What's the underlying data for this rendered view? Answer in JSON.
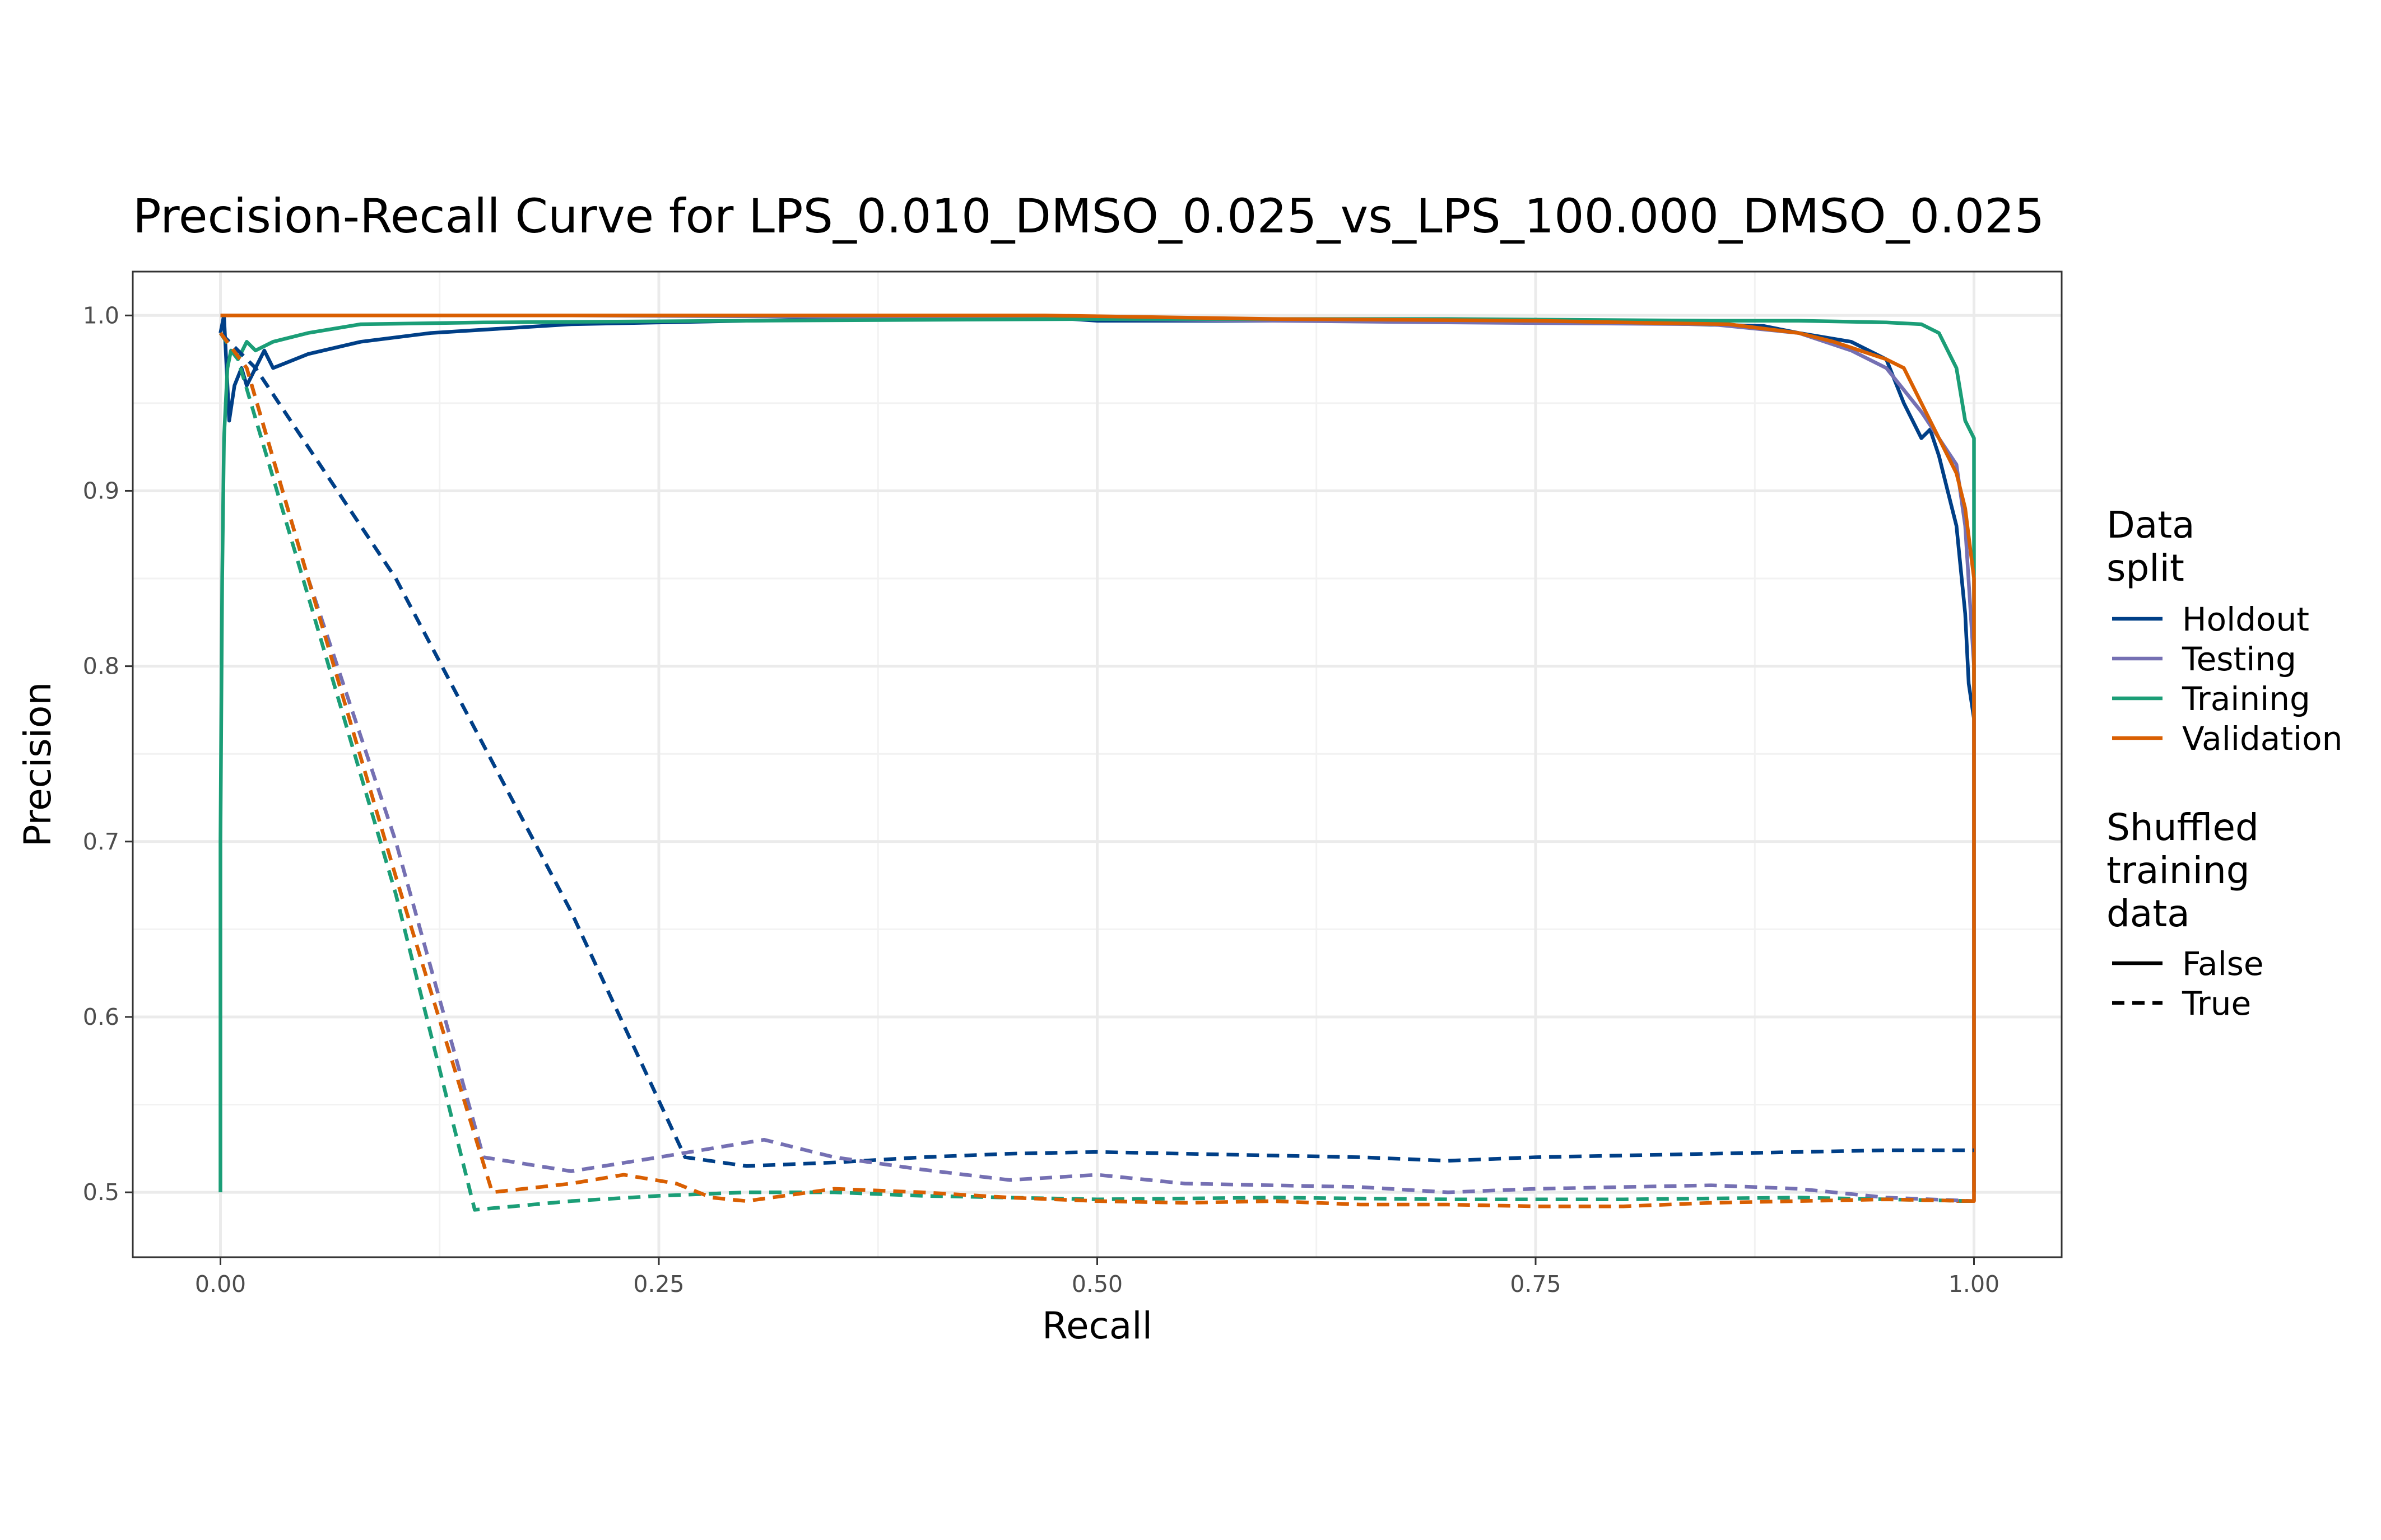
{
  "chart_data": {
    "type": "line",
    "title": "Precision-Recall Curve for LPS_0.010_DMSO_0.025_vs_LPS_100.000_DMSO_0.025",
    "xlabel": "Recall",
    "ylabel": "Precision",
    "xlim": [
      -0.05,
      1.05
    ],
    "ylim": [
      0.463,
      1.025
    ],
    "xticks": [
      0.0,
      0.25,
      0.5,
      0.75,
      1.0
    ],
    "xtick_labels": [
      "0.00",
      "0.25",
      "0.50",
      "0.75",
      "1.00"
    ],
    "yticks": [
      0.5,
      0.6,
      0.7,
      0.8,
      0.9,
      1.0
    ],
    "ytick_labels": [
      "0.5",
      "0.6",
      "0.7",
      "0.8",
      "0.9",
      "1.0"
    ],
    "grid": true,
    "legend_placement": "right",
    "legend": {
      "color_title_lines": [
        "Data",
        "split"
      ],
      "color_entries": [
        {
          "label": "Holdout",
          "color": "#003f87"
        },
        {
          "label": "Testing",
          "color": "#7570b3"
        },
        {
          "label": "Training",
          "color": "#1b9e77"
        },
        {
          "label": "Validation",
          "color": "#d95f02"
        }
      ],
      "linetype_title_lines": [
        "Shuffled",
        "training",
        "data"
      ],
      "linetype_entries": [
        {
          "label": "False",
          "dash": "solid"
        },
        {
          "label": "True",
          "dash": "dashed"
        }
      ]
    },
    "series": [
      {
        "split": "Holdout",
        "shuffled": "False",
        "color": "#003f87",
        "dash": "solid",
        "points": [
          [
            0.0,
            0.99
          ],
          [
            0.002,
            1.0
          ],
          [
            0.005,
            0.94
          ],
          [
            0.008,
            0.96
          ],
          [
            0.012,
            0.97
          ],
          [
            0.015,
            0.96
          ],
          [
            0.02,
            0.97
          ],
          [
            0.025,
            0.98
          ],
          [
            0.03,
            0.97
          ],
          [
            0.05,
            0.978
          ],
          [
            0.08,
            0.985
          ],
          [
            0.12,
            0.99
          ],
          [
            0.2,
            0.995
          ],
          [
            0.3,
            0.997
          ],
          [
            0.47,
            0.999
          ],
          [
            0.5,
            0.997
          ],
          [
            0.7,
            0.997
          ],
          [
            0.8,
            0.996
          ],
          [
            0.88,
            0.994
          ],
          [
            0.9,
            0.99
          ],
          [
            0.93,
            0.985
          ],
          [
            0.95,
            0.975
          ],
          [
            0.96,
            0.95
          ],
          [
            0.97,
            0.93
          ],
          [
            0.975,
            0.935
          ],
          [
            0.98,
            0.92
          ],
          [
            0.985,
            0.9
          ],
          [
            0.99,
            0.88
          ],
          [
            0.995,
            0.83
          ],
          [
            0.997,
            0.79
          ],
          [
            1.0,
            0.77
          ],
          [
            1.0,
            0.5
          ]
        ]
      },
      {
        "split": "Testing",
        "shuffled": "False",
        "color": "#7570b3",
        "dash": "solid",
        "points": [
          [
            0.0,
            1.0
          ],
          [
            0.2,
            1.0
          ],
          [
            0.4,
            0.999
          ],
          [
            0.6,
            0.997
          ],
          [
            0.7,
            0.996
          ],
          [
            0.85,
            0.995
          ],
          [
            0.9,
            0.99
          ],
          [
            0.93,
            0.98
          ],
          [
            0.95,
            0.97
          ],
          [
            0.97,
            0.945
          ],
          [
            0.98,
            0.93
          ],
          [
            0.99,
            0.915
          ],
          [
            0.995,
            0.88
          ],
          [
            1.0,
            0.8
          ],
          [
            1.0,
            0.495
          ]
        ]
      },
      {
        "split": "Training",
        "shuffled": "False",
        "color": "#1b9e77",
        "dash": "solid",
        "points": [
          [
            0.0,
            0.5
          ],
          [
            0.0,
            0.7
          ],
          [
            0.001,
            0.85
          ],
          [
            0.002,
            0.93
          ],
          [
            0.004,
            0.97
          ],
          [
            0.006,
            0.98
          ],
          [
            0.01,
            0.975
          ],
          [
            0.015,
            0.985
          ],
          [
            0.02,
            0.98
          ],
          [
            0.03,
            0.985
          ],
          [
            0.05,
            0.99
          ],
          [
            0.08,
            0.995
          ],
          [
            0.15,
            0.996
          ],
          [
            0.3,
            0.997
          ],
          [
            0.5,
            0.998
          ],
          [
            0.7,
            0.998
          ],
          [
            0.85,
            0.997
          ],
          [
            0.9,
            0.997
          ],
          [
            0.95,
            0.996
          ],
          [
            0.97,
            0.995
          ],
          [
            0.98,
            0.99
          ],
          [
            0.99,
            0.97
          ],
          [
            0.995,
            0.94
          ],
          [
            1.0,
            0.93
          ],
          [
            1.0,
            0.77
          ]
        ]
      },
      {
        "split": "Validation",
        "shuffled": "False",
        "color": "#d95f02",
        "dash": "solid",
        "points": [
          [
            0.0,
            1.0
          ],
          [
            0.47,
            1.0
          ],
          [
            0.6,
            0.998
          ],
          [
            0.75,
            0.997
          ],
          [
            0.8,
            0.996
          ],
          [
            0.86,
            0.995
          ],
          [
            0.9,
            0.99
          ],
          [
            0.92,
            0.985
          ],
          [
            0.95,
            0.975
          ],
          [
            0.96,
            0.97
          ],
          [
            0.97,
            0.95
          ],
          [
            0.98,
            0.93
          ],
          [
            0.99,
            0.91
          ],
          [
            0.995,
            0.89
          ],
          [
            1.0,
            0.85
          ],
          [
            1.0,
            0.495
          ],
          [
            0.99,
            0.495
          ]
        ]
      },
      {
        "split": "Holdout",
        "shuffled": "True",
        "color": "#003f87",
        "dash": "dashed",
        "points": [
          [
            0.0,
            0.99
          ],
          [
            0.02,
            0.97
          ],
          [
            0.1,
            0.85
          ],
          [
            0.2,
            0.66
          ],
          [
            0.265,
            0.52
          ],
          [
            0.3,
            0.515
          ],
          [
            0.35,
            0.517
          ],
          [
            0.4,
            0.52
          ],
          [
            0.45,
            0.522
          ],
          [
            0.5,
            0.523
          ],
          [
            0.55,
            0.522
          ],
          [
            0.6,
            0.521
          ],
          [
            0.65,
            0.52
          ],
          [
            0.7,
            0.518
          ],
          [
            0.75,
            0.52
          ],
          [
            0.8,
            0.521
          ],
          [
            0.85,
            0.522
          ],
          [
            0.9,
            0.523
          ],
          [
            0.95,
            0.524
          ],
          [
            1.0,
            0.524
          ]
        ]
      },
      {
        "split": "Testing",
        "shuffled": "True",
        "color": "#7570b3",
        "dash": "dashed",
        "points": [
          [
            0.0,
            0.99
          ],
          [
            0.015,
            0.97
          ],
          [
            0.05,
            0.85
          ],
          [
            0.1,
            0.7
          ],
          [
            0.15,
            0.52
          ],
          [
            0.2,
            0.512
          ],
          [
            0.25,
            0.52
          ],
          [
            0.28,
            0.525
          ],
          [
            0.31,
            0.53
          ],
          [
            0.35,
            0.52
          ],
          [
            0.4,
            0.513
          ],
          [
            0.45,
            0.507
          ],
          [
            0.5,
            0.51
          ],
          [
            0.55,
            0.505
          ],
          [
            0.6,
            0.504
          ],
          [
            0.65,
            0.503
          ],
          [
            0.7,
            0.5
          ],
          [
            0.75,
            0.502
          ],
          [
            0.8,
            0.503
          ],
          [
            0.85,
            0.504
          ],
          [
            0.9,
            0.502
          ],
          [
            0.95,
            0.497
          ],
          [
            1.0,
            0.495
          ]
        ]
      },
      {
        "split": "Training",
        "shuffled": "True",
        "color": "#1b9e77",
        "dash": "dashed",
        "points": [
          [
            0.0,
            0.99
          ],
          [
            0.01,
            0.975
          ],
          [
            0.05,
            0.84
          ],
          [
            0.1,
            0.67
          ],
          [
            0.145,
            0.49
          ],
          [
            0.2,
            0.495
          ],
          [
            0.25,
            0.498
          ],
          [
            0.3,
            0.5
          ],
          [
            0.35,
            0.5
          ],
          [
            0.4,
            0.498
          ],
          [
            0.5,
            0.496
          ],
          [
            0.6,
            0.497
          ],
          [
            0.7,
            0.496
          ],
          [
            0.8,
            0.496
          ],
          [
            0.9,
            0.497
          ],
          [
            1.0,
            0.495
          ]
        ]
      },
      {
        "split": "Validation",
        "shuffled": "True",
        "color": "#d95f02",
        "dash": "dashed",
        "points": [
          [
            0.0,
            0.99
          ],
          [
            0.015,
            0.97
          ],
          [
            0.05,
            0.85
          ],
          [
            0.1,
            0.68
          ],
          [
            0.155,
            0.5
          ],
          [
            0.2,
            0.505
          ],
          [
            0.23,
            0.51
          ],
          [
            0.26,
            0.505
          ],
          [
            0.28,
            0.497
          ],
          [
            0.3,
            0.495
          ],
          [
            0.35,
            0.502
          ],
          [
            0.4,
            0.5
          ],
          [
            0.45,
            0.497
          ],
          [
            0.5,
            0.495
          ],
          [
            0.55,
            0.494
          ],
          [
            0.6,
            0.495
          ],
          [
            0.65,
            0.493
          ],
          [
            0.7,
            0.493
          ],
          [
            0.75,
            0.492
          ],
          [
            0.8,
            0.492
          ],
          [
            0.85,
            0.494
          ],
          [
            0.9,
            0.495
          ],
          [
            0.95,
            0.496
          ],
          [
            1.0,
            0.495
          ]
        ]
      }
    ]
  }
}
